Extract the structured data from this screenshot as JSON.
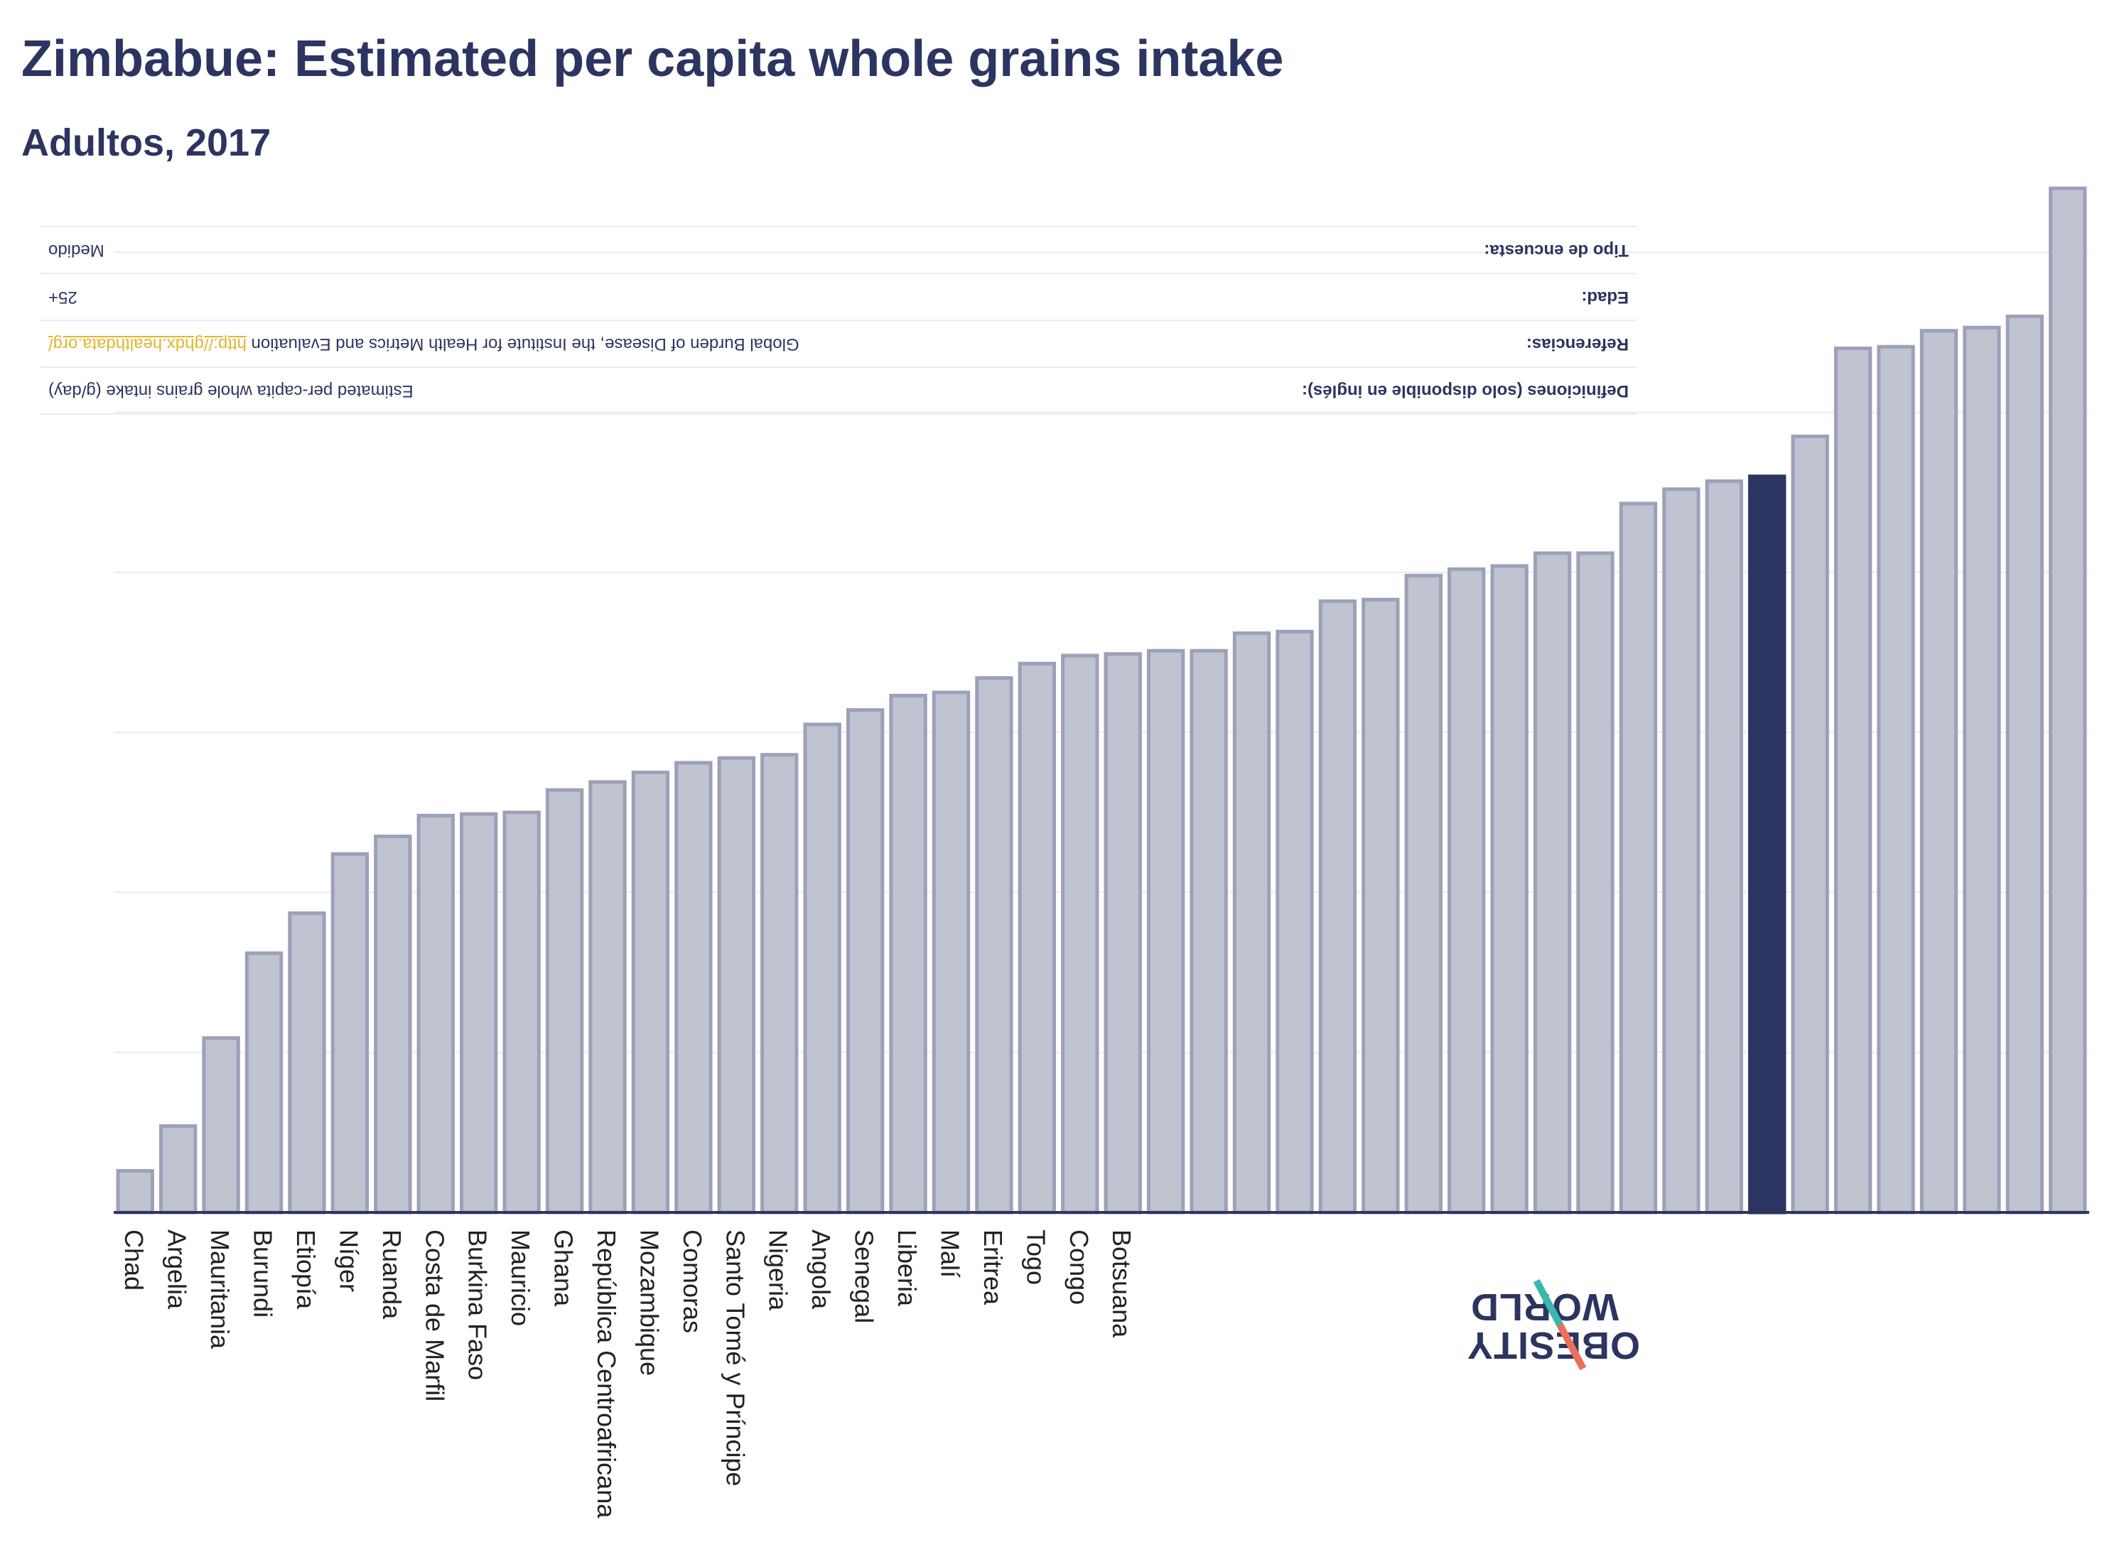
{
  "header": {
    "title": "Zimbabue: Estimated per capita whole grains intake",
    "subtitle": "Adultos, 2017"
  },
  "meta": {
    "rows": [
      {
        "label": "Definiciones (solo disponible en inglés):",
        "value": "Estimated per-capita whole grains intake (g/day)"
      },
      {
        "label": "Referencias:",
        "value": "Global Burden of Disease, the Institute for Health Metrics and Evaluation ",
        "link": "http://ghdx.healthdata.org/"
      },
      {
        "label": "Edad:",
        "value": "25+"
      },
      {
        "label": "Tipo de encuesta:",
        "value": "Medido"
      }
    ]
  },
  "logo": {
    "line1": "OBESITY",
    "line2": "WORLD"
  },
  "colors": {
    "bar": "#c0c3d0",
    "bar_stroke": "#9ca1b8",
    "highlight": "#2c3561",
    "grid": "#e8ebee",
    "axis": "#2c3561"
  },
  "chart_data": {
    "type": "bar",
    "categories": [
      "Chad",
      "Argelia",
      "Mauritania",
      "Burundi",
      "Etiopía",
      "Níger",
      "Ruanda",
      "Costa de Marfil",
      "Burkina Faso",
      "Mauricio",
      "Ghana",
      "República Centroafricana",
      "Mozambique",
      "Comoras",
      "Santo Tomé y Príncipe",
      "Nigeria",
      "Angola",
      "Senegal",
      "Liberia",
      "Malí",
      "Eritrea",
      "Togo",
      "Congo",
      "Botsuana",
      "",
      "",
      "",
      "",
      "",
      "",
      "",
      "",
      "",
      "",
      "",
      "",
      "",
      "",
      "",
      "",
      "",
      "",
      "",
      "",
      "",
      ""
    ],
    "values": [
      2.6,
      5.4,
      10.9,
      16.2,
      18.7,
      22.4,
      23.5,
      24.8,
      24.9,
      25.0,
      26.4,
      26.9,
      27.5,
      28.1,
      28.4,
      28.6,
      30.5,
      31.4,
      32.3,
      32.5,
      33.4,
      34.3,
      34.8,
      34.9,
      35.1,
      35.1,
      36.2,
      36.3,
      38.2,
      38.3,
      39.8,
      40.2,
      40.4,
      41.2,
      41.2,
      44.3,
      45.2,
      45.7,
      46.0,
      48.5,
      54.0,
      54.1,
      55.1,
      55.3,
      56.0,
      64.0
    ],
    "highlight_index": 38,
    "ylim": [
      0,
      70
    ],
    "grid": true,
    "y_gridlines": [
      10,
      20,
      30,
      40,
      50,
      60
    ],
    "xlabel": "",
    "ylabel": ""
  }
}
